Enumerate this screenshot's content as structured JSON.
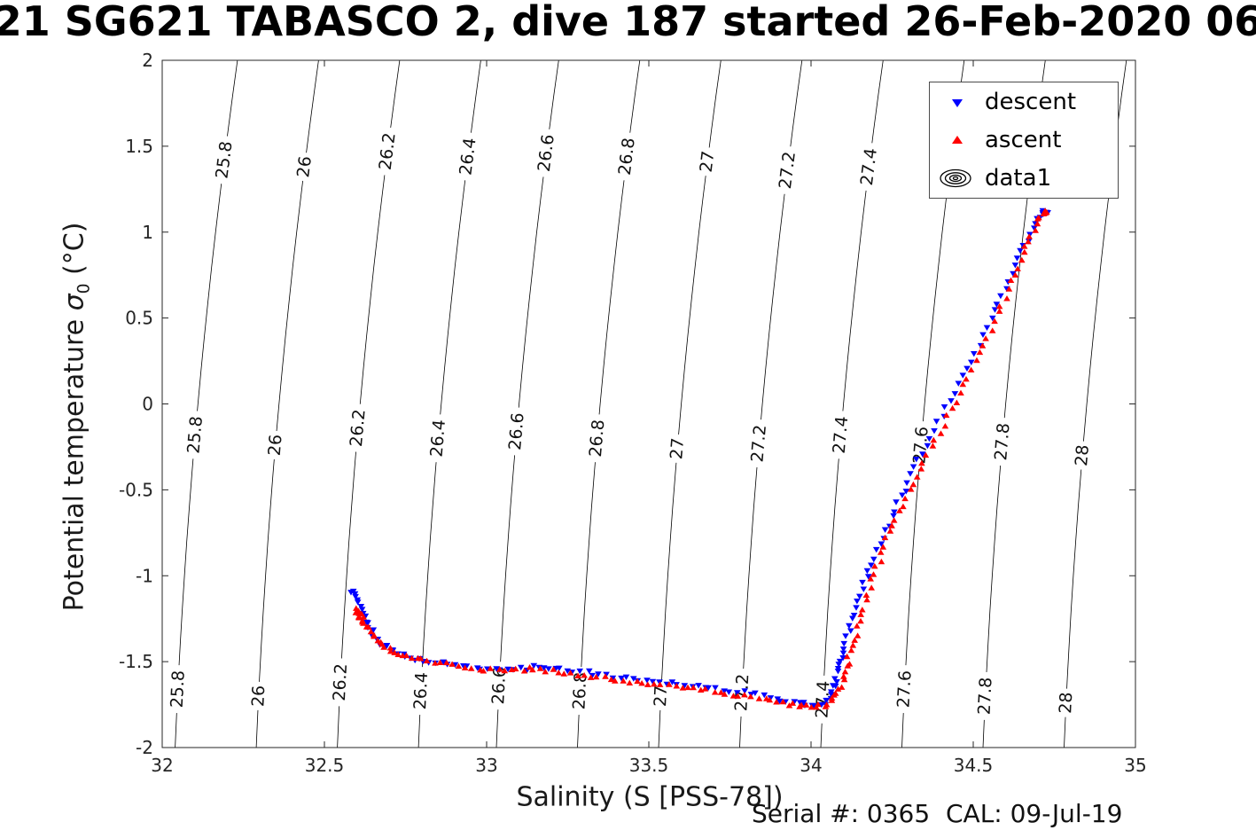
{
  "title": "21 SG621 TABASCO 2, dive 187 started 26-Feb-2020 06",
  "footer": {
    "serial_cal": "Serial #: 0365  CAL: 09-Jul-19"
  },
  "axes": {
    "xlabel": "Salinity (S [PSS-78])",
    "ylabel": {
      "prefix": "Potential temperature ",
      "sigma": "σ",
      "sub": "0",
      "suffix": " (°C)"
    },
    "xlim": [
      32,
      35
    ],
    "ylim": [
      -2,
      2
    ],
    "x_ticks": {
      "values": [
        32,
        32.5,
        33,
        33.5,
        34,
        34.5,
        35
      ],
      "labels": [
        "32",
        "32.5",
        "33",
        "33.5",
        "34",
        "34.5",
        "35"
      ]
    },
    "y_ticks": {
      "values": [
        -2,
        -1.5,
        -1,
        -0.5,
        0,
        0.5,
        1,
        1.5,
        2
      ],
      "labels": [
        "-2",
        "-1.5",
        "-1",
        "-0.5",
        "0",
        "0.5",
        "1",
        "1.5",
        "2"
      ]
    }
  },
  "legend": {
    "items": [
      {
        "label": "descent",
        "marker": "triangle-down",
        "color": "#0000FF"
      },
      {
        "label": "ascent",
        "marker": "triangle-up",
        "color": "#FF0000"
      },
      {
        "label": "data1",
        "marker": "contour-rings",
        "color": "#000000"
      }
    ]
  },
  "chart_data": {
    "type": "scatter",
    "title": "21 SG621 TABASCO 2, dive 187 started 26-Feb-2020 06",
    "xlabel": "Salinity (S [PSS-78])",
    "ylabel": "Potential temperature σ0 (°C)",
    "xlim": [
      32,
      35
    ],
    "ylim": [
      -2,
      2
    ],
    "grid": false,
    "legend_position": "top-right-inside",
    "contour_shape": {
      "dSdT": 0.048,
      "curv": 0.0065
    },
    "contours": [
      {
        "sigma": "25.8",
        "s_at_t0": 32.11,
        "label_t": [
          1.42,
          -0.18,
          -1.66
        ]
      },
      {
        "sigma": "26",
        "s_at_t0": 32.36,
        "label_t": [
          1.38,
          -0.24,
          -1.7
        ]
      },
      {
        "sigma": "26.2",
        "s_at_t0": 32.61,
        "label_t": [
          1.47,
          -0.14,
          -1.62
        ]
      },
      {
        "sigma": "26.4",
        "s_at_t0": 32.86,
        "label_t": [
          1.44,
          -0.2,
          -1.67
        ]
      },
      {
        "sigma": "26.6",
        "s_at_t0": 33.1,
        "label_t": [
          1.46,
          -0.16,
          -1.64
        ]
      },
      {
        "sigma": "26.8",
        "s_at_t0": 33.35,
        "label_t": [
          1.44,
          -0.2,
          -1.67
        ]
      },
      {
        "sigma": "27",
        "s_at_t0": 33.6,
        "label_t": [
          1.41,
          -0.26,
          -1.7
        ]
      },
      {
        "sigma": "27.2",
        "s_at_t0": 33.85,
        "label_t": [
          1.36,
          -0.23,
          -1.68
        ]
      },
      {
        "sigma": "27.4",
        "s_at_t0": 34.1,
        "label_t": [
          1.38,
          -0.18,
          -1.72
        ]
      },
      {
        "sigma": "27.6",
        "s_at_t0": 34.35,
        "label_t": [
          1.38,
          -0.24,
          -1.66
        ]
      },
      {
        "sigma": "27.8",
        "s_at_t0": 34.6,
        "label_t": [
          1.45,
          -0.22,
          -1.7
        ]
      },
      {
        "sigma": "28",
        "s_at_t0": 34.85,
        "label_t": [
          1.28,
          -0.3,
          -1.74
        ]
      }
    ],
    "series": [
      {
        "name": "descent",
        "marker": "v",
        "color": "#0000FF",
        "points": [
          [
            32.585,
            -1.08
          ],
          [
            32.59,
            -1.11
          ],
          [
            32.598,
            -1.14
          ],
          [
            32.606,
            -1.18
          ],
          [
            32.615,
            -1.22
          ],
          [
            32.626,
            -1.26
          ],
          [
            32.638,
            -1.3
          ],
          [
            32.652,
            -1.34
          ],
          [
            32.668,
            -1.375
          ],
          [
            32.686,
            -1.405
          ],
          [
            32.706,
            -1.43
          ],
          [
            32.728,
            -1.45
          ],
          [
            32.752,
            -1.468
          ],
          [
            32.778,
            -1.482
          ],
          [
            32.81,
            -1.495
          ],
          [
            32.845,
            -1.505
          ],
          [
            32.885,
            -1.515
          ],
          [
            32.925,
            -1.523
          ],
          [
            32.965,
            -1.53
          ],
          [
            33.005,
            -1.537
          ],
          [
            33.045,
            -1.543
          ],
          [
            33.085,
            -1.545
          ],
          [
            33.125,
            -1.538
          ],
          [
            33.16,
            -1.527
          ],
          [
            33.195,
            -1.53
          ],
          [
            33.23,
            -1.542
          ],
          [
            33.27,
            -1.553
          ],
          [
            33.31,
            -1.563
          ],
          [
            33.35,
            -1.574
          ],
          [
            33.39,
            -1.585
          ],
          [
            33.43,
            -1.595
          ],
          [
            33.47,
            -1.604
          ],
          [
            33.51,
            -1.612
          ],
          [
            33.55,
            -1.62
          ],
          [
            33.59,
            -1.628
          ],
          [
            33.63,
            -1.636
          ],
          [
            33.67,
            -1.645
          ],
          [
            33.71,
            -1.655
          ],
          [
            33.75,
            -1.666
          ],
          [
            33.79,
            -1.678
          ],
          [
            33.83,
            -1.69
          ],
          [
            33.87,
            -1.704
          ],
          [
            33.91,
            -1.72
          ],
          [
            33.945,
            -1.735
          ],
          [
            33.975,
            -1.747
          ],
          [
            34.0,
            -1.754
          ],
          [
            34.02,
            -1.752
          ],
          [
            34.038,
            -1.74
          ],
          [
            34.052,
            -1.718
          ],
          [
            34.062,
            -1.688
          ],
          [
            34.07,
            -1.652
          ],
          [
            34.076,
            -1.61
          ],
          [
            34.082,
            -1.565
          ],
          [
            34.088,
            -1.52
          ],
          [
            34.095,
            -1.47
          ],
          [
            34.103,
            -1.415
          ],
          [
            34.112,
            -1.355
          ],
          [
            34.122,
            -1.29
          ],
          [
            34.133,
            -1.22
          ],
          [
            34.145,
            -1.15
          ],
          [
            34.158,
            -1.08
          ],
          [
            34.172,
            -1.005
          ],
          [
            34.187,
            -0.93
          ],
          [
            34.203,
            -0.855
          ],
          [
            34.22,
            -0.78
          ],
          [
            34.238,
            -0.7
          ],
          [
            34.257,
            -0.62
          ],
          [
            34.277,
            -0.54
          ],
          [
            34.298,
            -0.455
          ],
          [
            34.32,
            -0.37
          ],
          [
            34.343,
            -0.285
          ],
          [
            34.367,
            -0.2
          ],
          [
            34.392,
            -0.11
          ],
          [
            34.418,
            -0.02
          ],
          [
            34.444,
            0.07
          ],
          [
            34.47,
            0.16
          ],
          [
            34.496,
            0.255
          ],
          [
            34.521,
            0.35
          ],
          [
            34.545,
            0.445
          ],
          [
            34.568,
            0.54
          ],
          [
            34.59,
            0.63
          ],
          [
            34.611,
            0.72
          ],
          [
            34.631,
            0.805
          ],
          [
            34.65,
            0.885
          ],
          [
            34.668,
            0.955
          ],
          [
            34.685,
            1.02
          ],
          [
            34.7,
            1.075
          ],
          [
            34.712,
            1.1
          ],
          [
            34.72,
            1.115
          ],
          [
            34.728,
            1.12
          ]
        ]
      },
      {
        "name": "ascent",
        "marker": "^",
        "color": "#FF0000",
        "points": [
          [
            32.596,
            -1.19
          ],
          [
            32.602,
            -1.21
          ],
          [
            32.608,
            -1.225
          ],
          [
            32.615,
            -1.235
          ],
          [
            32.61,
            -1.245
          ],
          [
            32.605,
            -1.255
          ],
          [
            32.618,
            -1.26
          ],
          [
            32.628,
            -1.29
          ],
          [
            32.64,
            -1.325
          ],
          [
            32.654,
            -1.36
          ],
          [
            32.67,
            -1.39
          ],
          [
            32.688,
            -1.418
          ],
          [
            32.708,
            -1.44
          ],
          [
            32.73,
            -1.458
          ],
          [
            32.755,
            -1.474
          ],
          [
            32.785,
            -1.488
          ],
          [
            32.818,
            -1.5
          ],
          [
            32.855,
            -1.512
          ],
          [
            32.895,
            -1.523
          ],
          [
            32.935,
            -1.533
          ],
          [
            32.975,
            -1.542
          ],
          [
            33.015,
            -1.55
          ],
          [
            33.055,
            -1.556
          ],
          [
            33.095,
            -1.552
          ],
          [
            33.13,
            -1.542
          ],
          [
            33.165,
            -1.545
          ],
          [
            33.2,
            -1.556
          ],
          [
            33.24,
            -1.567
          ],
          [
            33.28,
            -1.578
          ],
          [
            33.32,
            -1.588
          ],
          [
            33.36,
            -1.598
          ],
          [
            33.4,
            -1.608
          ],
          [
            33.44,
            -1.617
          ],
          [
            33.48,
            -1.625
          ],
          [
            33.52,
            -1.633
          ],
          [
            33.56,
            -1.641
          ],
          [
            33.6,
            -1.65
          ],
          [
            33.64,
            -1.659
          ],
          [
            33.68,
            -1.669
          ],
          [
            33.72,
            -1.68
          ],
          [
            33.76,
            -1.692
          ],
          [
            33.8,
            -1.704
          ],
          [
            33.84,
            -1.717
          ],
          [
            33.878,
            -1.73
          ],
          [
            33.912,
            -1.742
          ],
          [
            33.944,
            -1.753
          ],
          [
            33.974,
            -1.762
          ],
          [
            34.002,
            -1.765
          ],
          [
            34.028,
            -1.76
          ],
          [
            34.05,
            -1.745
          ],
          [
            34.068,
            -1.72
          ],
          [
            34.082,
            -1.685
          ],
          [
            34.093,
            -1.64
          ],
          [
            34.102,
            -1.59
          ],
          [
            34.11,
            -1.535
          ],
          [
            34.118,
            -1.475
          ],
          [
            34.127,
            -1.41
          ],
          [
            34.137,
            -1.34
          ],
          [
            34.148,
            -1.265
          ],
          [
            34.16,
            -1.19
          ],
          [
            34.173,
            -1.11
          ],
          [
            34.187,
            -1.03
          ],
          [
            34.202,
            -0.95
          ],
          [
            34.218,
            -0.87
          ],
          [
            34.235,
            -0.79
          ],
          [
            34.253,
            -0.71
          ],
          [
            34.272,
            -0.63
          ],
          [
            34.292,
            -0.55
          ],
          [
            34.313,
            -0.465
          ],
          [
            34.335,
            -0.38
          ],
          [
            34.358,
            -0.295
          ],
          [
            34.382,
            -0.21
          ],
          [
            34.407,
            -0.12
          ],
          [
            34.432,
            -0.03
          ],
          [
            34.457,
            0.06
          ],
          [
            34.482,
            0.15
          ],
          [
            34.507,
            0.245
          ],
          [
            34.531,
            0.34
          ],
          [
            34.554,
            0.435
          ],
          [
            34.576,
            0.53
          ],
          [
            34.597,
            0.62
          ],
          [
            34.617,
            0.71
          ],
          [
            34.636,
            0.795
          ],
          [
            34.654,
            0.875
          ],
          [
            34.671,
            0.95
          ],
          [
            34.687,
            1.015
          ],
          [
            34.702,
            1.07
          ],
          [
            34.714,
            1.1
          ],
          [
            34.723,
            1.115
          ],
          [
            34.731,
            1.12
          ]
        ]
      }
    ]
  }
}
